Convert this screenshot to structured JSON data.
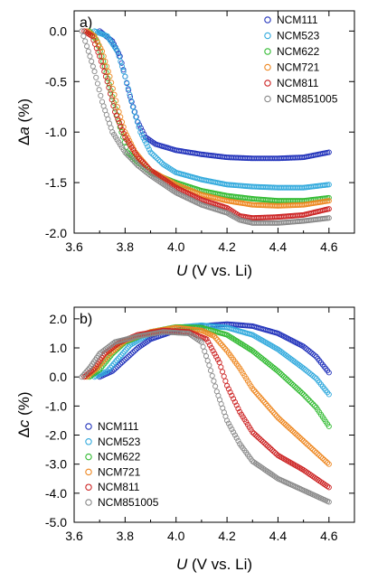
{
  "figure": {
    "x_unit_label": "(V vs. Li)",
    "x_symbol": "U"
  },
  "chart_data": [
    {
      "type": "scatter",
      "panel_label": "a)",
      "xlabel": "U (V vs. Li)",
      "ylabel_symbol": "a",
      "ylabel_unit": "(%)",
      "xlim": [
        3.6,
        4.7
      ],
      "ylim": [
        -2.0,
        0.2
      ],
      "x_ticks": [
        3.6,
        3.8,
        4.0,
        4.2,
        4.4,
        4.6
      ],
      "y_ticks": [
        -2.0,
        -1.5,
        -1.0,
        -0.5,
        0.0
      ],
      "x_tick_labels": [
        "3.6",
        "3.8",
        "4.0",
        "4.2",
        "4.4",
        "4.6"
      ],
      "y_tick_labels": [
        "-2.0",
        "-1.5",
        "-1.0",
        "-0.5",
        "0.0"
      ],
      "legend_position": "top-right",
      "grid": false,
      "series": [
        {
          "name": "NCM111",
          "color": "#2233bb",
          "points": [
            [
              3.7,
              0.0
            ],
            [
              3.75,
              -0.1
            ],
            [
              3.78,
              -0.25
            ],
            [
              3.8,
              -0.45
            ],
            [
              3.82,
              -0.65
            ],
            [
              3.85,
              -0.9
            ],
            [
              3.88,
              -1.05
            ],
            [
              3.92,
              -1.12
            ],
            [
              4.0,
              -1.18
            ],
            [
              4.1,
              -1.22
            ],
            [
              4.2,
              -1.25
            ],
            [
              4.3,
              -1.26
            ],
            [
              4.4,
              -1.26
            ],
            [
              4.5,
              -1.25
            ],
            [
              4.6,
              -1.2
            ]
          ]
        },
        {
          "name": "NCM523",
          "color": "#33aadd",
          "points": [
            [
              3.68,
              0.0
            ],
            [
              3.73,
              -0.05
            ],
            [
              3.77,
              -0.2
            ],
            [
              3.8,
              -0.45
            ],
            [
              3.83,
              -0.75
            ],
            [
              3.86,
              -1.0
            ],
            [
              3.9,
              -1.2
            ],
            [
              3.95,
              -1.32
            ],
            [
              4.0,
              -1.4
            ],
            [
              4.1,
              -1.47
            ],
            [
              4.2,
              -1.52
            ],
            [
              4.3,
              -1.54
            ],
            [
              4.4,
              -1.55
            ],
            [
              4.5,
              -1.55
            ],
            [
              4.6,
              -1.52
            ]
          ]
        },
        {
          "name": "NCM622",
          "color": "#33bb33",
          "points": [
            [
              3.66,
              0.0
            ],
            [
              3.69,
              -0.1
            ],
            [
              3.72,
              -0.35
            ],
            [
              3.75,
              -0.65
            ],
            [
              3.78,
              -0.95
            ],
            [
              3.81,
              -1.2
            ],
            [
              3.85,
              -1.3
            ],
            [
              3.9,
              -1.4
            ],
            [
              4.0,
              -1.5
            ],
            [
              4.1,
              -1.58
            ],
            [
              4.2,
              -1.63
            ],
            [
              4.3,
              -1.66
            ],
            [
              4.4,
              -1.68
            ],
            [
              4.5,
              -1.68
            ],
            [
              4.6,
              -1.65
            ]
          ]
        },
        {
          "name": "NCM721",
          "color": "#ee8822",
          "points": [
            [
              3.65,
              0.0
            ],
            [
              3.68,
              -0.05
            ],
            [
              3.71,
              -0.2
            ],
            [
              3.74,
              -0.45
            ],
            [
              3.77,
              -0.75
            ],
            [
              3.8,
              -1.0
            ],
            [
              3.84,
              -1.2
            ],
            [
              3.9,
              -1.38
            ],
            [
              4.0,
              -1.52
            ],
            [
              4.1,
              -1.62
            ],
            [
              4.2,
              -1.68
            ],
            [
              4.3,
              -1.72
            ],
            [
              4.4,
              -1.73
            ],
            [
              4.5,
              -1.72
            ],
            [
              4.6,
              -1.68
            ]
          ]
        },
        {
          "name": "NCM811",
          "color": "#cc2222",
          "points": [
            [
              3.64,
              0.0
            ],
            [
              3.67,
              -0.05
            ],
            [
              3.7,
              -0.25
            ],
            [
              3.73,
              -0.5
            ],
            [
              3.76,
              -0.8
            ],
            [
              3.8,
              -1.05
            ],
            [
              3.85,
              -1.25
            ],
            [
              3.9,
              -1.38
            ],
            [
              4.0,
              -1.55
            ],
            [
              4.1,
              -1.67
            ],
            [
              4.2,
              -1.75
            ],
            [
              4.25,
              -1.83
            ],
            [
              4.3,
              -1.85
            ],
            [
              4.4,
              -1.84
            ],
            [
              4.5,
              -1.82
            ],
            [
              4.6,
              -1.76
            ]
          ]
        },
        {
          "name": "NCM851005",
          "color": "#888888",
          "points": [
            [
              3.63,
              0.0
            ],
            [
              3.65,
              -0.15
            ],
            [
              3.68,
              -0.4
            ],
            [
              3.71,
              -0.7
            ],
            [
              3.75,
              -1.0
            ],
            [
              3.8,
              -1.2
            ],
            [
              3.85,
              -1.33
            ],
            [
              3.9,
              -1.43
            ],
            [
              4.0,
              -1.6
            ],
            [
              4.1,
              -1.72
            ],
            [
              4.2,
              -1.8
            ],
            [
              4.25,
              -1.87
            ],
            [
              4.3,
              -1.9
            ],
            [
              4.4,
              -1.9
            ],
            [
              4.5,
              -1.88
            ],
            [
              4.6,
              -1.85
            ]
          ]
        }
      ]
    },
    {
      "type": "scatter",
      "panel_label": "b)",
      "xlabel": "U (V vs. Li)",
      "ylabel_symbol": "c",
      "ylabel_unit": "(%)",
      "xlim": [
        3.6,
        4.7
      ],
      "ylim": [
        -5.0,
        2.4
      ],
      "x_ticks": [
        3.6,
        3.8,
        4.0,
        4.2,
        4.4,
        4.6
      ],
      "y_ticks": [
        -5.0,
        -4.0,
        -3.0,
        -2.0,
        -1.0,
        0.0,
        1.0,
        2.0
      ],
      "x_tick_labels": [
        "3.6",
        "3.8",
        "4.0",
        "4.2",
        "4.4",
        "4.6"
      ],
      "y_tick_labels": [
        "-5.0",
        "-4.0",
        "-3.0",
        "-2.0",
        "-1.0",
        "0.0",
        "1.0",
        "2.0"
      ],
      "legend_position": "bottom-left",
      "grid": false,
      "series": [
        {
          "name": "NCM111",
          "color": "#2233bb",
          "points": [
            [
              3.7,
              0.0
            ],
            [
              3.75,
              0.2
            ],
            [
              3.8,
              0.6
            ],
            [
              3.85,
              1.0
            ],
            [
              3.9,
              1.3
            ],
            [
              4.0,
              1.6
            ],
            [
              4.1,
              1.75
            ],
            [
              4.2,
              1.82
            ],
            [
              4.3,
              1.75
            ],
            [
              4.4,
              1.5
            ],
            [
              4.5,
              1.05
            ],
            [
              4.55,
              0.7
            ],
            [
              4.6,
              0.15
            ]
          ]
        },
        {
          "name": "NCM523",
          "color": "#33aadd",
          "points": [
            [
              3.68,
              0.0
            ],
            [
              3.73,
              0.2
            ],
            [
              3.78,
              0.7
            ],
            [
              3.82,
              1.1
            ],
            [
              3.9,
              1.5
            ],
            [
              4.0,
              1.7
            ],
            [
              4.1,
              1.78
            ],
            [
              4.2,
              1.7
            ],
            [
              4.3,
              1.45
            ],
            [
              4.4,
              0.95
            ],
            [
              4.5,
              0.3
            ],
            [
              4.55,
              -0.05
            ],
            [
              4.6,
              -0.6
            ]
          ]
        },
        {
          "name": "NCM622",
          "color": "#33bb33",
          "points": [
            [
              3.66,
              0.0
            ],
            [
              3.7,
              0.25
            ],
            [
              3.75,
              0.8
            ],
            [
              3.8,
              1.2
            ],
            [
              3.9,
              1.55
            ],
            [
              4.0,
              1.72
            ],
            [
              4.1,
              1.7
            ],
            [
              4.2,
              1.45
            ],
            [
              4.3,
              0.9
            ],
            [
              4.4,
              0.2
            ],
            [
              4.5,
              -0.6
            ],
            [
              4.55,
              -1.05
            ],
            [
              4.6,
              -1.7
            ]
          ]
        },
        {
          "name": "NCM721",
          "color": "#ee8822",
          "points": [
            [
              3.65,
              0.0
            ],
            [
              3.69,
              0.3
            ],
            [
              3.74,
              0.8
            ],
            [
              3.8,
              1.25
            ],
            [
              3.9,
              1.55
            ],
            [
              4.0,
              1.7
            ],
            [
              4.1,
              1.6
            ],
            [
              4.15,
              1.4
            ],
            [
              4.2,
              0.9
            ],
            [
              4.25,
              0.3
            ],
            [
              4.3,
              -0.4
            ],
            [
              4.4,
              -1.4
            ],
            [
              4.5,
              -2.2
            ],
            [
              4.55,
              -2.6
            ],
            [
              4.6,
              -3.0
            ]
          ]
        },
        {
          "name": "NCM811",
          "color": "#cc2222",
          "points": [
            [
              3.64,
              0.0
            ],
            [
              3.68,
              0.3
            ],
            [
              3.72,
              0.8
            ],
            [
              3.78,
              1.2
            ],
            [
              3.85,
              1.45
            ],
            [
              3.95,
              1.6
            ],
            [
              4.05,
              1.55
            ],
            [
              4.12,
              1.3
            ],
            [
              4.17,
              0.5
            ],
            [
              4.2,
              -0.3
            ],
            [
              4.25,
              -1.2
            ],
            [
              4.3,
              -1.9
            ],
            [
              4.4,
              -2.7
            ],
            [
              4.5,
              -3.2
            ],
            [
              4.55,
              -3.5
            ],
            [
              4.6,
              -3.8
            ]
          ]
        },
        {
          "name": "NCM851005",
          "color": "#888888",
          "points": [
            [
              3.63,
              0.0
            ],
            [
              3.66,
              0.3
            ],
            [
              3.7,
              0.8
            ],
            [
              3.76,
              1.2
            ],
            [
              3.85,
              1.4
            ],
            [
              3.95,
              1.55
            ],
            [
              4.05,
              1.5
            ],
            [
              4.1,
              1.2
            ],
            [
              4.13,
              0.4
            ],
            [
              4.16,
              -0.5
            ],
            [
              4.2,
              -1.5
            ],
            [
              4.25,
              -2.3
            ],
            [
              4.3,
              -2.9
            ],
            [
              4.4,
              -3.5
            ],
            [
              4.5,
              -3.9
            ],
            [
              4.55,
              -4.1
            ],
            [
              4.6,
              -4.3
            ]
          ]
        }
      ]
    }
  ]
}
